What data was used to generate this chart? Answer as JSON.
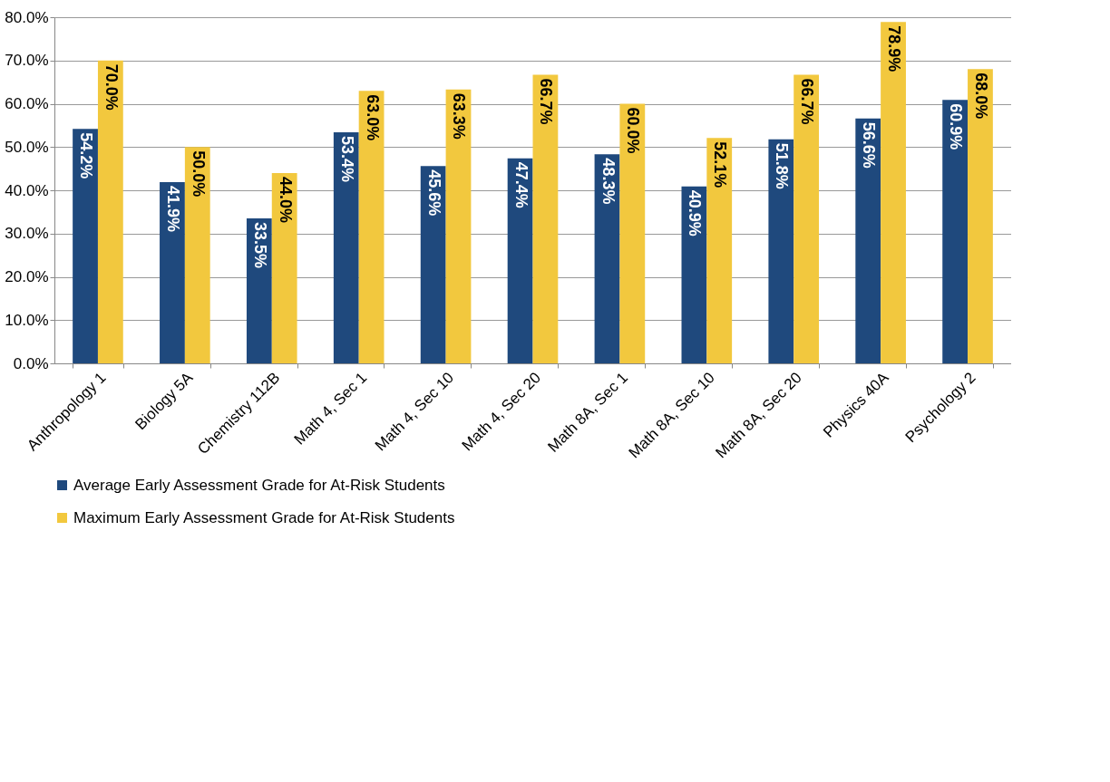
{
  "chart_data": {
    "type": "bar",
    "categories": [
      "Anthropology 1",
      "Biology 5A",
      "Chemistry 112B",
      "Math 4, Sec 1",
      "Math 4, Sec 10",
      "Math 4, Sec 20",
      "Math 8A, Sec 1",
      "Math 8A, Sec 10",
      "Math 8A, Sec 20",
      "Physics 40A",
      "Psychology 2"
    ],
    "series": [
      {
        "name": "Average Early Assessment Grade for At-Risk Students",
        "color": "#1f497d",
        "values": [
          54.2,
          41.9,
          33.5,
          53.4,
          45.6,
          47.4,
          48.3,
          40.9,
          51.8,
          56.6,
          60.9
        ],
        "value_labels": [
          "54.2%",
          "41.9%",
          "33.5%",
          "53.4%",
          "45.6%",
          "47.4%",
          "48.3%",
          "40.9%",
          "51.8%",
          "56.6%",
          "60.9%"
        ]
      },
      {
        "name": "Maximum Early Assessment Grade for At-Risk Students",
        "color": "#f2c83e",
        "values": [
          70.0,
          50.0,
          44.0,
          63.0,
          63.3,
          66.7,
          60.0,
          52.1,
          66.7,
          78.9,
          68.0
        ],
        "value_labels": [
          "70.0%",
          "50.0%",
          "44.0%",
          "63.0%",
          "63.3%",
          "66.7%",
          "60.0%",
          "52.1%",
          "66.7%",
          "78.9%",
          "68.0%"
        ]
      }
    ],
    "ylim": [
      0,
      80
    ],
    "yticks": [
      {
        "value": 0,
        "label": "0.0%"
      },
      {
        "value": 10,
        "label": "10.0%"
      },
      {
        "value": 20,
        "label": "20.0%"
      },
      {
        "value": 30,
        "label": "30.0%"
      },
      {
        "value": 40,
        "label": "40.0%"
      },
      {
        "value": 50,
        "label": "50.0%"
      },
      {
        "value": 60,
        "label": "60.0%"
      },
      {
        "value": 70,
        "label": "70.0%"
      },
      {
        "value": 80,
        "label": "80.0%"
      }
    ],
    "grid": "y",
    "legend": "bottom left"
  }
}
